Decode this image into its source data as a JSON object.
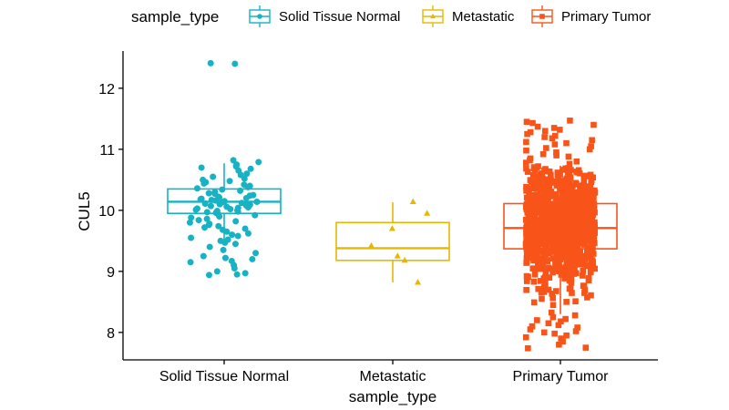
{
  "chart_data": {
    "type": "box",
    "xlabel": "sample_type",
    "ylabel": "CUL5",
    "ylim": [
      7.55,
      12.55
    ],
    "yticks": [
      8,
      9,
      10,
      11,
      12
    ],
    "grid": false,
    "legend": {
      "title": "sample_type",
      "position": "top"
    },
    "categories": [
      "Solid Tissue Normal",
      "Metastatic",
      "Primary Tumor"
    ],
    "series": [
      {
        "name": "Solid Tissue Normal",
        "color": "#17B2C4",
        "marker": "circle",
        "box": {
          "min": 9.45,
          "q1": 9.95,
          "median": 10.14,
          "q3": 10.35,
          "max": 10.77
        },
        "points": [
          12.4,
          12.41,
          10.82,
          10.79,
          10.75,
          10.72,
          10.7,
          10.68,
          10.65,
          10.6,
          10.58,
          10.55,
          10.52,
          10.5,
          10.48,
          10.46,
          10.44,
          10.42,
          10.4,
          10.38,
          10.36,
          10.34,
          10.32,
          10.3,
          10.28,
          10.27,
          10.25,
          10.24,
          10.22,
          10.21,
          10.2,
          10.19,
          10.18,
          10.17,
          10.16,
          10.15,
          10.14,
          10.13,
          10.12,
          10.11,
          10.1,
          10.09,
          10.08,
          10.07,
          10.06,
          10.05,
          10.04,
          10.03,
          10.02,
          10.01,
          10.0,
          9.99,
          9.98,
          9.97,
          9.96,
          9.95,
          9.93,
          9.92,
          9.9,
          9.88,
          9.86,
          9.84,
          9.82,
          9.8,
          9.78,
          9.76,
          9.74,
          9.72,
          9.7,
          9.68,
          9.65,
          9.62,
          9.6,
          9.58,
          9.55,
          9.52,
          9.5,
          9.47,
          9.45,
          9.4,
          9.35,
          9.3,
          9.25,
          9.22,
          9.2,
          9.17,
          9.15,
          9.1,
          9.05,
          9.0,
          8.97,
          8.95,
          8.94
        ]
      },
      {
        "name": "Metastatic",
        "color": "#E6B800",
        "marker": "triangle",
        "box": {
          "min": 8.82,
          "q1": 9.18,
          "median": 9.38,
          "q3": 9.8,
          "max": 10.13
        },
        "points": [
          10.14,
          9.95,
          9.7,
          9.42,
          9.25,
          9.18,
          8.82
        ]
      },
      {
        "name": "Primary Tumor",
        "color": "#F8541A",
        "marker": "square",
        "box": {
          "min": 8.3,
          "q1": 9.37,
          "median": 9.71,
          "q3": 10.11,
          "max": 10.73
        },
        "outliers": [
          11.47,
          11.45,
          11.43,
          11.4,
          11.37,
          11.35,
          11.32,
          11.3,
          11.28,
          11.25,
          11.22,
          11.2,
          11.18,
          11.15,
          11.12,
          11.1,
          11.08,
          11.05,
          11.02,
          11.0,
          10.98,
          10.95,
          10.92,
          10.9,
          10.88,
          10.85,
          10.82,
          10.8,
          10.78,
          10.76,
          8.28,
          8.25,
          8.22,
          8.2,
          8.18,
          8.15,
          8.12,
          8.1,
          8.08,
          8.05,
          8.02,
          8.0,
          7.98,
          7.95,
          7.92,
          7.9,
          7.85,
          7.8,
          7.75,
          7.74
        ],
        "bulk_n": 900,
        "bulk_mean": 9.72,
        "bulk_sd": 0.48
      }
    ]
  }
}
